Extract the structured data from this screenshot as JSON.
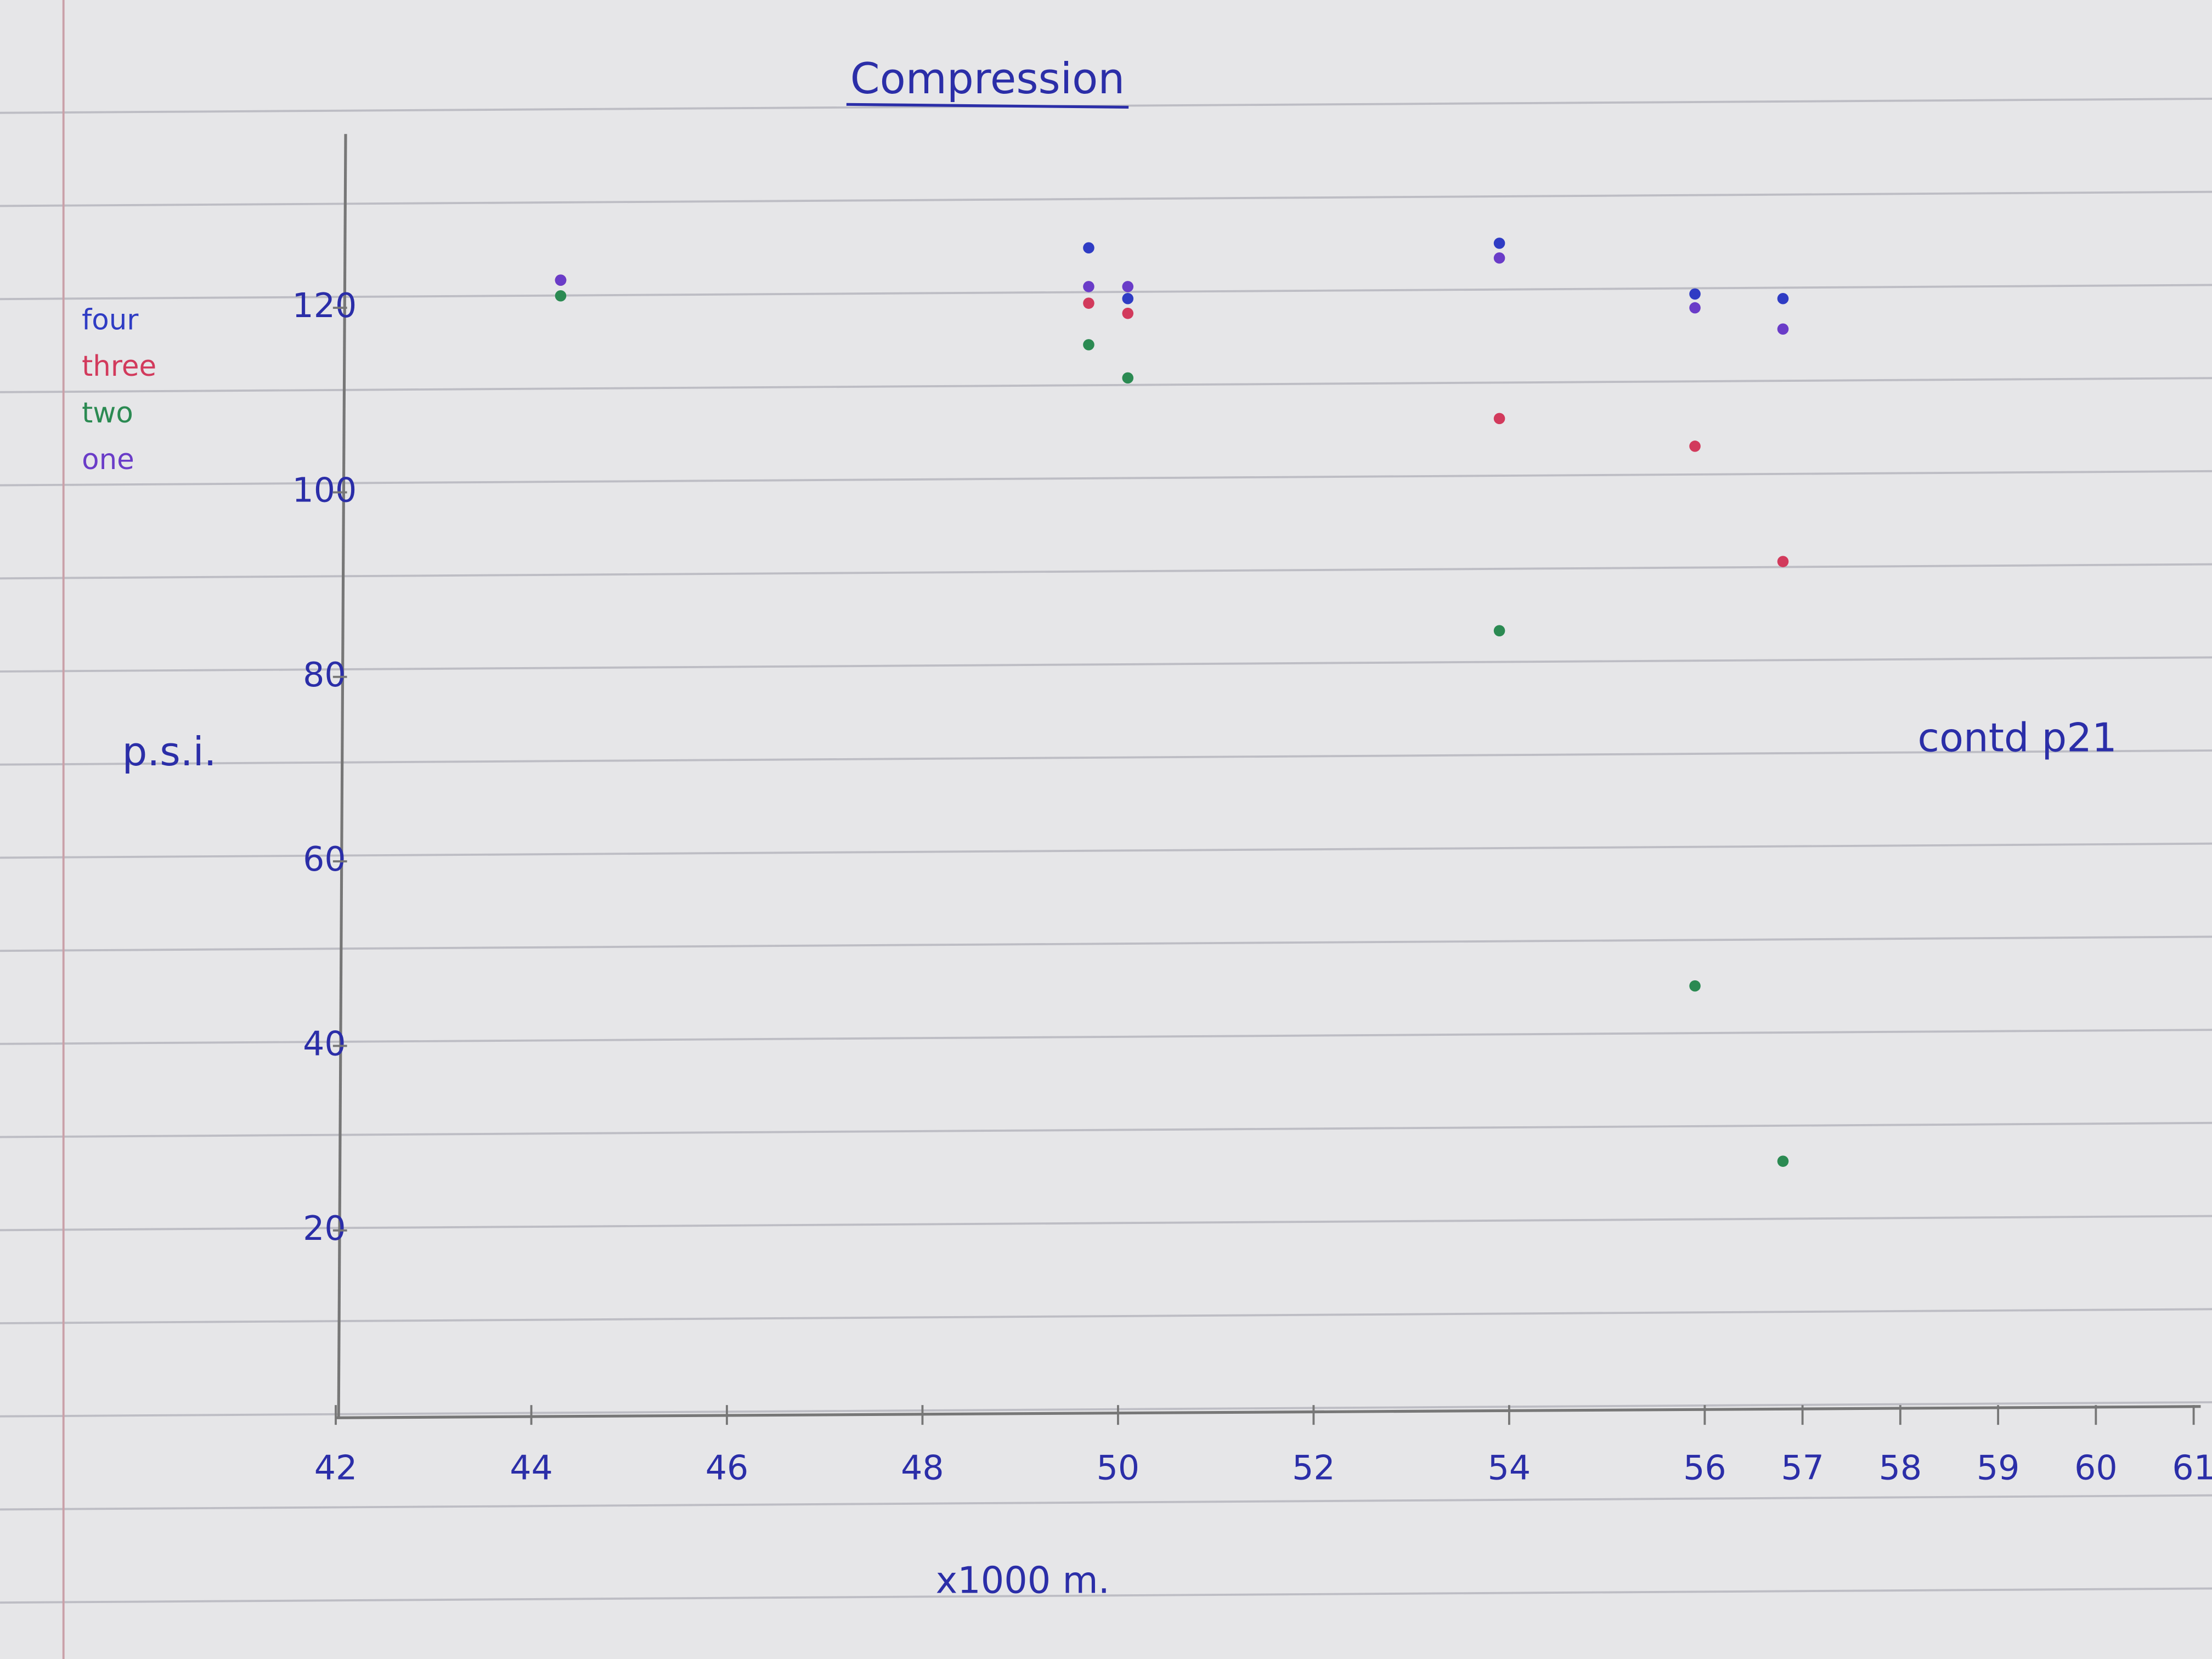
{
  "chart_data": {
    "type": "line",
    "title": "Compression",
    "y_label": "p.s.i.",
    "x_label": "x1000 m.",
    "annotation": "contd p21",
    "x": [
      44.3,
      49.7,
      50.1,
      53.9,
      55.9,
      56.8
    ],
    "series": [
      {
        "name": "four",
        "color": "#2f3cc4",
        "values": [
          123,
          126.5,
          121,
          127,
          121.5,
          121
        ]
      },
      {
        "name": "three",
        "color": "#d23a5c",
        "values": [
          123,
          120.5,
          119.4,
          108,
          105,
          92.5
        ]
      },
      {
        "name": "two",
        "color": "#2b8a52",
        "values": [
          121.3,
          116,
          112.4,
          85,
          46.5,
          27.5
        ]
      },
      {
        "name": "one",
        "color": "#6a3cc8",
        "values": [
          123,
          122.3,
          122.3,
          125.4,
          120,
          117.7
        ]
      }
    ],
    "xlim": [
      42,
      61
    ],
    "xticks": [
      42,
      44,
      46,
      48,
      50,
      52,
      54,
      56,
      57,
      58,
      59,
      60,
      61
    ],
    "ylim": [
      0,
      140
    ],
    "yticks": [
      20,
      40,
      60,
      80,
      100,
      120
    ]
  }
}
